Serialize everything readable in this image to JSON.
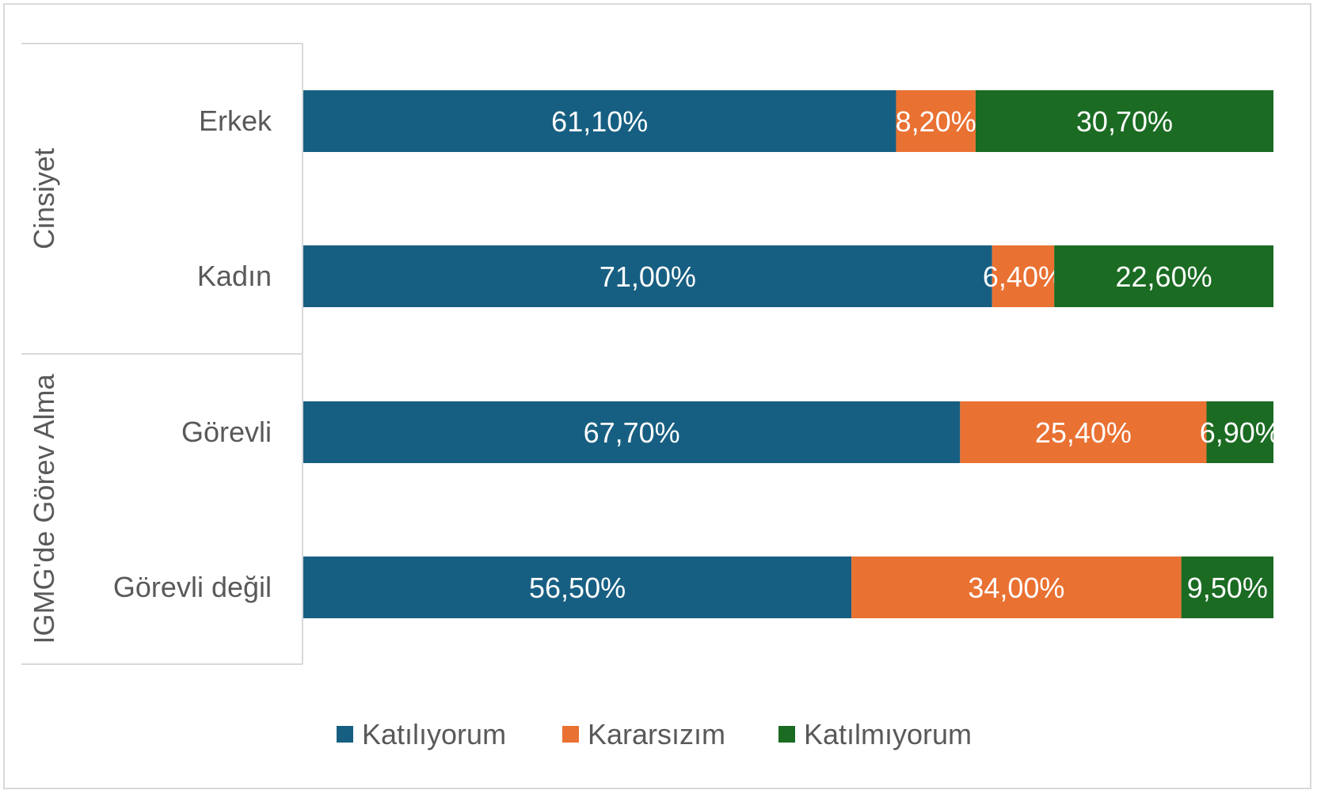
{
  "chart_data": {
    "type": "bar",
    "orientation": "horizontal",
    "stacked": "100%",
    "title": "",
    "xlabel": "",
    "ylabel": "",
    "xlim": [
      0,
      100
    ],
    "grid": false,
    "legend_position": "bottom",
    "groups": [
      {
        "label": "Cinsiyet",
        "categories": [
          "Erkek",
          "Kadın"
        ]
      },
      {
        "label": "IGMG'de Görev Alma",
        "categories": [
          "Görevli",
          "Görevli değil"
        ]
      }
    ],
    "categories": [
      "Erkek",
      "Kadın",
      "Görevli",
      "Görevli değil"
    ],
    "series": [
      {
        "name": "Katılıyorum",
        "color": "#175f82",
        "values": [
          61.1,
          71.0,
          67.7,
          56.5
        ],
        "labels": [
          "61,10%",
          "71,00%",
          "67,70%",
          "56,50%"
        ]
      },
      {
        "name": "Kararsızım",
        "color": "#e97132",
        "values": [
          8.2,
          6.4,
          25.4,
          34.0
        ],
        "labels": [
          "8,20%",
          "6,40%",
          "25,40%",
          "34,00%"
        ]
      },
      {
        "name": "Katılmıyorum",
        "color": "#1b6b23",
        "values": [
          30.7,
          22.6,
          6.9,
          9.5
        ],
        "labels": [
          "30,70%",
          "22,60%",
          "6,90%",
          "9,50%"
        ]
      }
    ]
  }
}
